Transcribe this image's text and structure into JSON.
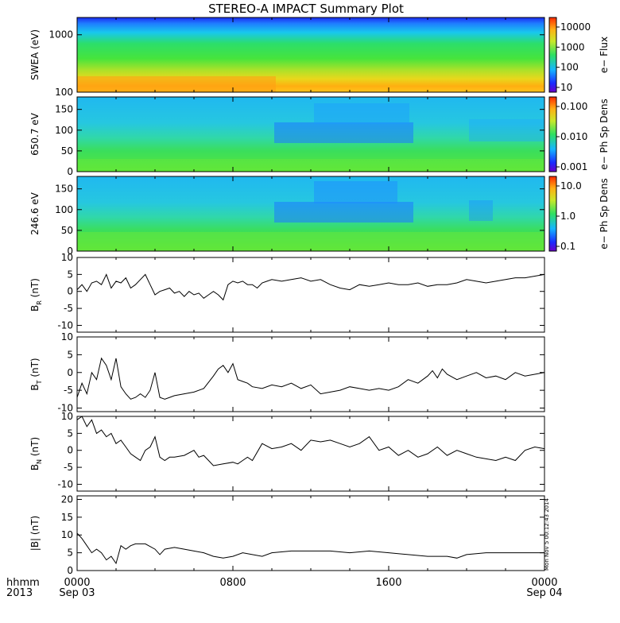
{
  "title": "STEREO-A IMPACT Summary Plot",
  "stamp": "Mon Nov  5 00:12:43 2014",
  "time_axis": {
    "row_label_1": "hhmm",
    "row_label_2": "2013",
    "ticks": [
      {
        "hours": 0,
        "time": "0000",
        "date": "Sep 03"
      },
      {
        "hours": 8,
        "time": "0800",
        "date": ""
      },
      {
        "hours": 16,
        "time": "1600",
        "date": ""
      },
      {
        "hours": 24,
        "time": "0000",
        "date": "Sep 04"
      }
    ],
    "range_hours": [
      0,
      24
    ]
  },
  "chart_data": [
    {
      "type": "heatmap",
      "id": "swea",
      "ylabel": "SWEA (eV)",
      "ylim": [
        100,
        2000
      ],
      "yscale": "log",
      "yticks": [
        "1000",
        "100"
      ],
      "colorbar": {
        "label": "e− Flux",
        "scale": "log",
        "ticks": [
          "10000",
          "1000",
          "100",
          "10"
        ]
      },
      "description_values": {
        "low_energy_level": "high flux (orange)",
        "high_energy_level": "low flux (blue)"
      }
    },
    {
      "type": "heatmap",
      "id": "pad650",
      "ylabel": "650.7 eV",
      "ylim": [
        0,
        180
      ],
      "yticks": [
        "150",
        "100",
        "50",
        "0"
      ],
      "colorbar": {
        "label": "e− Ph Sp Dens",
        "scale": "log",
        "ticks": [
          "0.100",
          "0.010",
          "0.001"
        ]
      }
    },
    {
      "type": "heatmap",
      "id": "pad246",
      "ylabel": "246.6 eV",
      "ylim": [
        0,
        180
      ],
      "yticks": [
        "150",
        "100",
        "50",
        "0"
      ],
      "colorbar": {
        "label": "e− Ph Sp Dens",
        "scale": "log",
        "ticks": [
          "10.0",
          "1.0",
          "0.1"
        ]
      }
    },
    {
      "type": "line",
      "id": "br",
      "ylabel_main": "B",
      "ylabel_sub": "R",
      "ylabel_unit": "(nT)",
      "ylim": [
        -12,
        10
      ],
      "yticks": [
        "10",
        "5",
        "0",
        "-5",
        "-10"
      ],
      "x": [
        0,
        0.25,
        0.5,
        0.75,
        1,
        1.25,
        1.5,
        1.75,
        2,
        2.25,
        2.5,
        2.75,
        3,
        3.25,
        3.5,
        3.75,
        4,
        4.25,
        4.5,
        4.75,
        5,
        5.25,
        5.5,
        5.75,
        6,
        6.25,
        6.5,
        6.75,
        7,
        7.25,
        7.5,
        7.75,
        8,
        8.25,
        8.5,
        8.75,
        9,
        9.25,
        9.5,
        9.75,
        10,
        10.5,
        11,
        11.5,
        12,
        12.5,
        13,
        13.5,
        14,
        14.5,
        15,
        15.5,
        16,
        16.5,
        17,
        17.5,
        18,
        18.5,
        19,
        19.5,
        20,
        20.5,
        21,
        21.5,
        22,
        22.5,
        23,
        23.5,
        24
      ],
      "y": [
        0.5,
        2,
        0,
        2.5,
        3,
        2,
        5,
        1,
        3,
        2.5,
        4,
        1,
        2,
        3.5,
        5,
        2,
        -1,
        0,
        0.5,
        1,
        -0.5,
        0,
        -1.5,
        0,
        -1,
        -0.5,
        -2,
        -1,
        0,
        -1,
        -2.5,
        2,
        3,
        2.5,
        3,
        2,
        2,
        1,
        2.5,
        3,
        3.5,
        3,
        3.5,
        4,
        3,
        3.5,
        2,
        1,
        0.5,
        2,
        1.5,
        2,
        2.5,
        2,
        2,
        2.5,
        1.5,
        2,
        2,
        2.5,
        3.5,
        3,
        2.5,
        3,
        3.5,
        4,
        4,
        4.5,
        5
      ]
    },
    {
      "type": "line",
      "id": "bt",
      "ylabel_main": "B",
      "ylabel_sub": "T",
      "ylabel_unit": "(nT)",
      "ylim": [
        -11,
        10
      ],
      "yticks": [
        "10",
        "5",
        "0",
        "-5",
        "-10"
      ],
      "x": [
        0,
        0.25,
        0.5,
        0.75,
        1,
        1.25,
        1.5,
        1.75,
        2,
        2.25,
        2.5,
        2.75,
        3,
        3.25,
        3.5,
        3.75,
        4,
        4.25,
        4.5,
        4.75,
        5,
        5.5,
        6,
        6.5,
        7,
        7.25,
        7.5,
        7.75,
        8,
        8.25,
        8.5,
        8.75,
        9,
        9.5,
        10,
        10.5,
        11,
        11.5,
        12,
        12.5,
        13,
        13.5,
        14,
        14.5,
        15,
        15.5,
        16,
        16.5,
        17,
        17.5,
        18,
        18.25,
        18.5,
        18.75,
        19,
        19.5,
        20,
        20.5,
        21,
        21.5,
        22,
        22.5,
        23,
        23.5,
        24
      ],
      "y": [
        -7,
        -3,
        -6,
        0,
        -2,
        4,
        2,
        -2,
        4,
        -4,
        -6,
        -7.5,
        -7,
        -6,
        -7,
        -5,
        0,
        -7,
        -7.5,
        -7,
        -6.5,
        -6,
        -5.5,
        -4.5,
        -1,
        1,
        2,
        0,
        2.5,
        -2,
        -2.5,
        -3,
        -4,
        -4.5,
        -3.5,
        -4,
        -3,
        -4.5,
        -3.5,
        -6,
        -5.5,
        -5,
        -4,
        -4.5,
        -5,
        -4.5,
        -5,
        -4,
        -2,
        -3,
        -1,
        0.5,
        -1.5,
        1,
        -0.5,
        -2,
        -1,
        0,
        -1.5,
        -1,
        -2,
        0,
        -1,
        -0.5,
        0
      ]
    },
    {
      "type": "line",
      "id": "bn",
      "ylabel_main": "B",
      "ylabel_sub": "N",
      "ylabel_unit": "(nT)",
      "ylim": [
        -12,
        10
      ],
      "yticks": [
        "10",
        "5",
        "0",
        "-5",
        "-10"
      ],
      "x": [
        0,
        0.25,
        0.5,
        0.75,
        1,
        1.25,
        1.5,
        1.75,
        2,
        2.25,
        2.5,
        2.75,
        3,
        3.25,
        3.5,
        3.75,
        4,
        4.25,
        4.5,
        4.75,
        5,
        5.5,
        6,
        6.25,
        6.5,
        6.75,
        7,
        7.5,
        8,
        8.25,
        8.5,
        8.75,
        9,
        9.5,
        10,
        10.5,
        11,
        11.5,
        12,
        12.5,
        13,
        13.5,
        14,
        14.5,
        15,
        15.5,
        16,
        16.5,
        17,
        17.5,
        18,
        18.5,
        19,
        19.5,
        20,
        20.5,
        21,
        21.5,
        22,
        22.5,
        23,
        23.5,
        24
      ],
      "y": [
        9,
        10,
        7,
        9,
        5,
        6,
        4,
        5,
        2,
        3,
        1,
        -1,
        -2,
        -3,
        0,
        1,
        4,
        -2,
        -3,
        -2,
        -2,
        -1.5,
        0,
        -2,
        -1.5,
        -3,
        -4.5,
        -4,
        -3.5,
        -4,
        -3,
        -2,
        -3,
        2,
        0.5,
        1,
        2,
        0,
        3,
        2.5,
        3,
        2,
        1,
        2,
        4,
        0,
        1,
        -1.5,
        0,
        -2,
        -1,
        1,
        -1.5,
        0,
        -1,
        -2,
        -2.5,
        -3,
        -2,
        -3,
        0,
        1,
        0.5
      ]
    },
    {
      "type": "line",
      "id": "bmag",
      "ylabel_main": "|B|",
      "ylabel_unit": "(nT)",
      "ylim": [
        0,
        21
      ],
      "yticks": [
        "20",
        "15",
        "10",
        "5",
        "0"
      ],
      "x": [
        0,
        0.25,
        0.5,
        0.75,
        1,
        1.25,
        1.5,
        1.75,
        2,
        2.25,
        2.5,
        2.75,
        3,
        3.5,
        4,
        4.25,
        4.5,
        5,
        5.5,
        6,
        6.5,
        7,
        7.5,
        8,
        8.5,
        9,
        9.5,
        10,
        11,
        12,
        13,
        14,
        15,
        16,
        17,
        18,
        19,
        19.5,
        20,
        21,
        22,
        23,
        24
      ],
      "y": [
        10.5,
        9,
        7,
        5,
        6,
        5,
        3,
        4,
        2,
        7,
        6,
        7,
        7.5,
        7.5,
        6,
        4.5,
        6,
        6.5,
        6,
        5.5,
        5,
        4,
        3.5,
        4,
        5,
        4.5,
        4,
        5,
        5.5,
        5.5,
        5.5,
        5,
        5.5,
        5,
        4.5,
        4,
        4,
        3.5,
        4.5,
        5,
        5,
        5,
        5
      ]
    }
  ]
}
